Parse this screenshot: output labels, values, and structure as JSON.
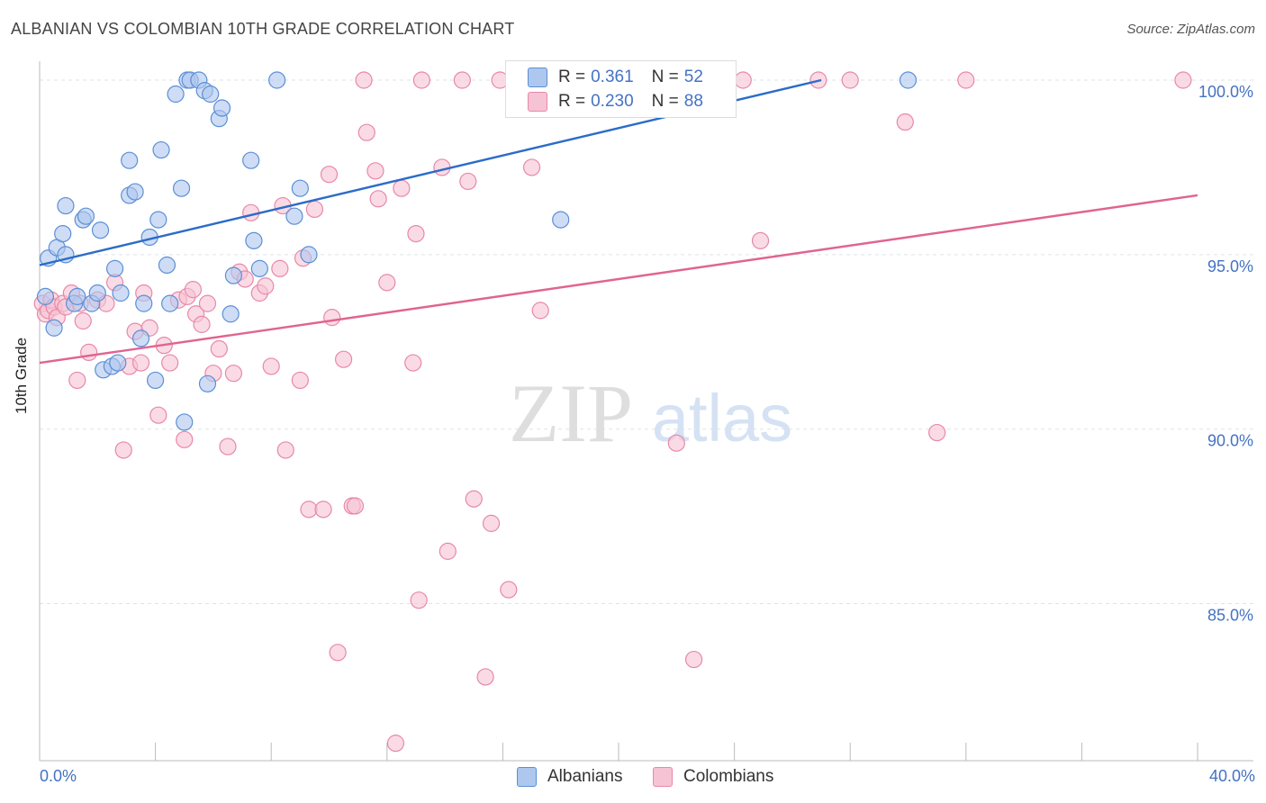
{
  "title": "ALBANIAN VS COLOMBIAN 10TH GRADE CORRELATION CHART",
  "source": "Source: ZipAtlas.com",
  "watermark": {
    "zip": "ZIP",
    "atlas": "atlas"
  },
  "legend": {
    "rows": [
      {
        "r_label": "R =",
        "r_value": "0.361",
        "n_label": "N =",
        "n_value": "52"
      },
      {
        "r_label": "R =",
        "r_value": "0.230",
        "n_label": "N =",
        "n_value": "88"
      }
    ]
  },
  "bottom_legend": {
    "albanians": "Albanians",
    "colombians": "Colombians"
  },
  "colors": {
    "blue_fill": "#aec7ee",
    "blue_stroke": "#5b8fd6",
    "blue_line": "#2b6cc8",
    "pink_fill": "#f6c3d4",
    "pink_stroke": "#e888a8",
    "pink_line": "#e06490",
    "tick_label": "#4472c4",
    "grid": "#dde3ea"
  },
  "chart_data": {
    "type": "scatter",
    "title": "ALBANIAN VS COLOMBIAN 10TH GRADE CORRELATION CHART",
    "xlabel": "",
    "ylabel": "10th Grade",
    "xlim": [
      0,
      40
    ],
    "ylim": [
      80.5,
      100.8
    ],
    "x_tick_labels": [
      "0.0%",
      "40.0%"
    ],
    "y_ticks": [
      85,
      90,
      95,
      100
    ],
    "y_tick_labels": [
      "85.0%",
      "90.0%",
      "95.0%",
      "100.0%"
    ],
    "grid": true,
    "series": [
      {
        "name": "Albanians",
        "color": "#5b8fd6",
        "r": 0.361,
        "n": 52,
        "trend": {
          "x": [
            0,
            27
          ],
          "y": [
            94.7,
            100.0
          ]
        },
        "points": [
          [
            0.2,
            93.8
          ],
          [
            0.3,
            94.9
          ],
          [
            0.5,
            92.9
          ],
          [
            0.6,
            95.2
          ],
          [
            0.8,
            95.6
          ],
          [
            0.9,
            96.4
          ],
          [
            0.9,
            95.0
          ],
          [
            1.2,
            93.6
          ],
          [
            1.3,
            93.8
          ],
          [
            1.5,
            96.0
          ],
          [
            1.6,
            96.1
          ],
          [
            1.8,
            93.6
          ],
          [
            2.1,
            95.7
          ],
          [
            2.0,
            93.9
          ],
          [
            2.2,
            91.7
          ],
          [
            2.5,
            91.8
          ],
          [
            2.6,
            94.6
          ],
          [
            2.7,
            91.9
          ],
          [
            2.8,
            93.9
          ],
          [
            3.1,
            97.7
          ],
          [
            3.1,
            96.7
          ],
          [
            3.3,
            96.8
          ],
          [
            3.5,
            92.6
          ],
          [
            3.6,
            93.6
          ],
          [
            3.8,
            95.5
          ],
          [
            4.0,
            91.4
          ],
          [
            4.1,
            96.0
          ],
          [
            4.2,
            98.0
          ],
          [
            4.4,
            94.7
          ],
          [
            4.5,
            93.6
          ],
          [
            4.7,
            99.6
          ],
          [
            4.9,
            96.9
          ],
          [
            5.0,
            90.2
          ],
          [
            5.1,
            100.0
          ],
          [
            5.2,
            100.0
          ],
          [
            5.5,
            100.0
          ],
          [
            5.7,
            99.7
          ],
          [
            5.8,
            91.3
          ],
          [
            5.9,
            99.6
          ],
          [
            6.2,
            98.9
          ],
          [
            6.3,
            99.2
          ],
          [
            6.6,
            93.3
          ],
          [
            6.7,
            94.4
          ],
          [
            7.3,
            97.7
          ],
          [
            7.4,
            95.4
          ],
          [
            7.6,
            94.6
          ],
          [
            8.2,
            100.0
          ],
          [
            8.8,
            96.1
          ],
          [
            9.0,
            96.9
          ],
          [
            9.3,
            95.0
          ],
          [
            18.0,
            96.0
          ],
          [
            30.0,
            100.0
          ]
        ]
      },
      {
        "name": "Colombians",
        "color": "#e888a8",
        "r": 0.23,
        "n": 88,
        "trend": {
          "x": [
            0,
            40
          ],
          "y": [
            91.9,
            96.7
          ]
        },
        "points": [
          [
            0.1,
            93.6
          ],
          [
            0.2,
            93.3
          ],
          [
            0.3,
            93.4
          ],
          [
            0.4,
            93.7
          ],
          [
            0.5,
            93.5
          ],
          [
            0.6,
            93.2
          ],
          [
            0.8,
            93.6
          ],
          [
            0.9,
            93.5
          ],
          [
            1.1,
            93.9
          ],
          [
            1.3,
            91.4
          ],
          [
            1.4,
            93.6
          ],
          [
            1.5,
            93.1
          ],
          [
            1.7,
            92.2
          ],
          [
            2.0,
            93.7
          ],
          [
            2.3,
            93.6
          ],
          [
            2.6,
            94.2
          ],
          [
            2.9,
            89.4
          ],
          [
            3.1,
            91.8
          ],
          [
            3.3,
            92.8
          ],
          [
            3.5,
            91.9
          ],
          [
            3.6,
            93.9
          ],
          [
            3.8,
            92.9
          ],
          [
            4.1,
            90.4
          ],
          [
            4.3,
            92.4
          ],
          [
            4.5,
            91.9
          ],
          [
            4.8,
            93.7
          ],
          [
            5.0,
            89.7
          ],
          [
            5.1,
            93.8
          ],
          [
            5.3,
            94.0
          ],
          [
            5.4,
            93.3
          ],
          [
            5.6,
            93.0
          ],
          [
            5.8,
            93.6
          ],
          [
            6.0,
            91.6
          ],
          [
            6.2,
            92.3
          ],
          [
            6.5,
            89.5
          ],
          [
            6.7,
            91.6
          ],
          [
            6.9,
            94.5
          ],
          [
            7.1,
            94.3
          ],
          [
            7.3,
            96.2
          ],
          [
            7.6,
            93.9
          ],
          [
            7.8,
            94.1
          ],
          [
            8.0,
            91.8
          ],
          [
            8.3,
            94.6
          ],
          [
            8.4,
            96.4
          ],
          [
            8.5,
            89.4
          ],
          [
            9.0,
            91.4
          ],
          [
            9.1,
            94.9
          ],
          [
            9.3,
            87.7
          ],
          [
            9.5,
            96.3
          ],
          [
            9.8,
            87.7
          ],
          [
            10.0,
            97.3
          ],
          [
            10.1,
            93.2
          ],
          [
            10.3,
            83.6
          ],
          [
            10.5,
            92.0
          ],
          [
            10.8,
            87.8
          ],
          [
            10.9,
            87.8
          ],
          [
            11.2,
            100.0
          ],
          [
            11.3,
            98.5
          ],
          [
            11.6,
            97.4
          ],
          [
            11.7,
            96.6
          ],
          [
            12.0,
            94.2
          ],
          [
            12.3,
            81.0
          ],
          [
            12.5,
            96.9
          ],
          [
            12.9,
            91.9
          ],
          [
            13.0,
            95.6
          ],
          [
            13.1,
            85.1
          ],
          [
            13.2,
            100.0
          ],
          [
            13.9,
            97.5
          ],
          [
            14.1,
            86.5
          ],
          [
            14.6,
            100.0
          ],
          [
            14.8,
            97.1
          ],
          [
            15.0,
            88.0
          ],
          [
            15.4,
            82.9
          ],
          [
            15.6,
            87.3
          ],
          [
            15.9,
            100.0
          ],
          [
            16.2,
            85.4
          ],
          [
            17.0,
            97.5
          ],
          [
            17.3,
            93.4
          ],
          [
            22.0,
            89.6
          ],
          [
            22.6,
            83.4
          ],
          [
            24.3,
            100.0
          ],
          [
            24.9,
            95.4
          ],
          [
            26.9,
            100.0
          ],
          [
            28.0,
            100.0
          ],
          [
            29.9,
            98.8
          ],
          [
            31.0,
            89.9
          ],
          [
            32.0,
            100.0
          ],
          [
            39.5,
            100.0
          ]
        ]
      }
    ]
  }
}
